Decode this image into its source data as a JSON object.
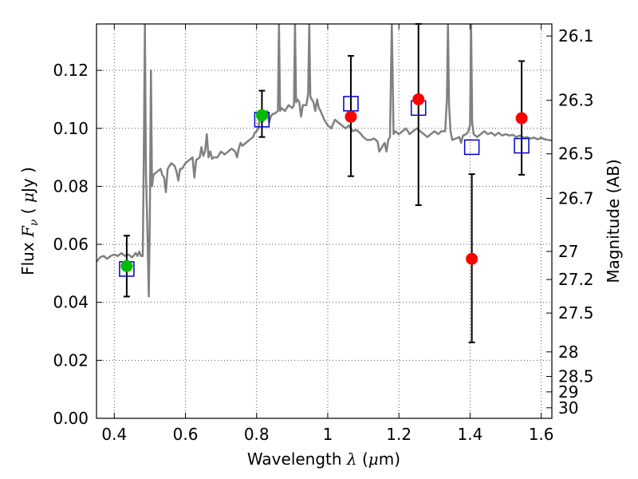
{
  "chart_data": {
    "type": "scatter",
    "xlabel": {
      "prefix": "Wavelength ",
      "symbol": "λ",
      "unit_open": " (",
      "unit_mu": "μ",
      "unit_rest": "m)"
    },
    "ylabel": {
      "prefix": "Flux ",
      "symbol": "F",
      "subscript": "ν",
      "unit_open": " ( ",
      "unit_mu": "μ",
      "unit_rest": "Jy )"
    },
    "y2label": "Magnitude (AB)",
    "xlim": [
      0.35,
      1.63
    ],
    "ylim": [
      0.0,
      0.136
    ],
    "grid": true,
    "x_ticks": [
      {
        "v": 0.4,
        "label": "0.4"
      },
      {
        "v": 0.6,
        "label": "0.6"
      },
      {
        "v": 0.8,
        "label": "0.8"
      },
      {
        "v": 1.0,
        "label": "1"
      },
      {
        "v": 1.2,
        "label": "1.2"
      },
      {
        "v": 1.4,
        "label": "1.4"
      },
      {
        "v": 1.6,
        "label": "1.6"
      }
    ],
    "y_ticks": [
      {
        "v": 0.0,
        "label": "0.00"
      },
      {
        "v": 0.02,
        "label": "0.02"
      },
      {
        "v": 0.04,
        "label": "0.04"
      },
      {
        "v": 0.06,
        "label": "0.06"
      },
      {
        "v": 0.08,
        "label": "0.08"
      },
      {
        "v": 0.1,
        "label": "0.10"
      },
      {
        "v": 0.12,
        "label": "0.12"
      }
    ],
    "y2_ticks": [
      {
        "mag": 26.1,
        "label": "26.1"
      },
      {
        "mag": 26.3,
        "label": "26.3"
      },
      {
        "mag": 26.5,
        "label": "26.5"
      },
      {
        "mag": 26.7,
        "label": "26.7"
      },
      {
        "mag": 27.0,
        "label": "27"
      },
      {
        "mag": 27.2,
        "label": "27.2"
      },
      {
        "mag": 27.5,
        "label": "27.5"
      },
      {
        "mag": 28.0,
        "label": "28"
      },
      {
        "mag": 28.5,
        "label": "28.5"
      },
      {
        "mag": 29.0,
        "label": "29"
      },
      {
        "mag": 30.0,
        "label": "30"
      }
    ],
    "colors": {
      "spectrum": "#808080",
      "green": "#00bb00",
      "red": "#ff0000",
      "blue": "#0000cc",
      "errorbar": "#000000",
      "grid": "#555555"
    },
    "series": [
      {
        "name": "model spectrum",
        "kind": "line",
        "points": [
          [
            0.35,
            0.054
          ],
          [
            0.36,
            0.0555
          ],
          [
            0.37,
            0.056
          ],
          [
            0.38,
            0.055
          ],
          [
            0.39,
            0.056
          ],
          [
            0.4,
            0.0565
          ],
          [
            0.41,
            0.056
          ],
          [
            0.42,
            0.057
          ],
          [
            0.43,
            0.056
          ],
          [
            0.44,
            0.0565
          ],
          [
            0.45,
            0.0555
          ],
          [
            0.46,
            0.057
          ],
          [
            0.465,
            0.056
          ],
          [
            0.47,
            0.0575
          ],
          [
            0.475,
            0.056
          ],
          [
            0.48,
            0.056
          ],
          [
            0.483,
            0.09
          ],
          [
            0.486,
            0.136
          ],
          [
            0.489,
            0.085
          ],
          [
            0.493,
            0.065
          ],
          [
            0.497,
            0.042
          ],
          [
            0.5,
            0.07
          ],
          [
            0.503,
            0.12
          ],
          [
            0.506,
            0.08
          ],
          [
            0.51,
            0.084
          ],
          [
            0.52,
            0.085
          ],
          [
            0.53,
            0.086
          ],
          [
            0.535,
            0.084
          ],
          [
            0.54,
            0.083
          ],
          [
            0.545,
            0.078
          ],
          [
            0.55,
            0.086
          ],
          [
            0.56,
            0.088
          ],
          [
            0.57,
            0.087
          ],
          [
            0.575,
            0.085
          ],
          [
            0.58,
            0.082
          ],
          [
            0.585,
            0.086
          ],
          [
            0.59,
            0.086
          ],
          [
            0.6,
            0.088
          ],
          [
            0.61,
            0.089
          ],
          [
            0.62,
            0.09
          ],
          [
            0.625,
            0.083
          ],
          [
            0.63,
            0.089
          ],
          [
            0.64,
            0.09
          ],
          [
            0.645,
            0.0935
          ],
          [
            0.65,
            0.0905
          ],
          [
            0.655,
            0.092
          ],
          [
            0.66,
            0.098
          ],
          [
            0.665,
            0.09
          ],
          [
            0.67,
            0.092
          ],
          [
            0.675,
            0.0895
          ],
          [
            0.68,
            0.09
          ],
          [
            0.69,
            0.09
          ],
          [
            0.7,
            0.092
          ],
          [
            0.71,
            0.091
          ],
          [
            0.72,
            0.092
          ],
          [
            0.73,
            0.093
          ],
          [
            0.74,
            0.092
          ],
          [
            0.745,
            0.09
          ],
          [
            0.75,
            0.093
          ],
          [
            0.755,
            0.095
          ],
          [
            0.76,
            0.094
          ],
          [
            0.77,
            0.095
          ],
          [
            0.78,
            0.096
          ],
          [
            0.79,
            0.097
          ],
          [
            0.795,
            0.0985
          ],
          [
            0.8,
            0.099
          ],
          [
            0.805,
            0.1
          ],
          [
            0.81,
            0.105
          ],
          [
            0.815,
            0.102
          ],
          [
            0.82,
            0.103
          ],
          [
            0.825,
            0.104
          ],
          [
            0.83,
            0.106
          ],
          [
            0.835,
            0.102
          ],
          [
            0.84,
            0.104
          ],
          [
            0.845,
            0.105
          ],
          [
            0.85,
            0.105
          ],
          [
            0.86,
            0.106
          ],
          [
            0.863,
            0.136
          ],
          [
            0.866,
            0.106
          ],
          [
            0.87,
            0.107
          ],
          [
            0.88,
            0.106
          ],
          [
            0.89,
            0.108
          ],
          [
            0.9,
            0.107
          ],
          [
            0.905,
            0.108
          ],
          [
            0.908,
            0.136
          ],
          [
            0.911,
            0.109
          ],
          [
            0.915,
            0.11
          ],
          [
            0.92,
            0.109
          ],
          [
            0.925,
            0.104
          ],
          [
            0.93,
            0.108
          ],
          [
            0.94,
            0.108
          ],
          [
            0.945,
            0.112
          ],
          [
            0.948,
            0.136
          ],
          [
            0.951,
            0.111
          ],
          [
            0.955,
            0.11
          ],
          [
            0.96,
            0.109
          ],
          [
            0.965,
            0.106
          ],
          [
            0.97,
            0.11
          ],
          [
            0.975,
            0.107
          ],
          [
            0.98,
            0.106
          ],
          [
            0.99,
            0.103
          ],
          [
            1.0,
            0.101
          ],
          [
            1.01,
            0.1
          ],
          [
            1.02,
            0.103
          ],
          [
            1.03,
            0.102
          ],
          [
            1.04,
            0.101
          ],
          [
            1.05,
            0.1
          ],
          [
            1.06,
            0.101
          ],
          [
            1.07,
            0.099
          ],
          [
            1.08,
            0.0995
          ],
          [
            1.09,
            0.0985
          ],
          [
            1.1,
            0.097
          ],
          [
            1.11,
            0.096
          ],
          [
            1.12,
            0.096
          ],
          [
            1.13,
            0.0965
          ],
          [
            1.14,
            0.0955
          ],
          [
            1.145,
            0.092
          ],
          [
            1.15,
            0.093
          ],
          [
            1.16,
            0.095
          ],
          [
            1.165,
            0.092
          ],
          [
            1.17,
            0.096
          ],
          [
            1.175,
            0.097
          ],
          [
            1.18,
            0.136
          ],
          [
            1.185,
            0.098
          ],
          [
            1.19,
            0.099
          ],
          [
            1.2,
            0.098
          ],
          [
            1.21,
            0.099
          ],
          [
            1.22,
            0.1
          ],
          [
            1.23,
            0.098
          ],
          [
            1.24,
            0.099
          ],
          [
            1.25,
            0.1
          ],
          [
            1.26,
            0.099
          ],
          [
            1.27,
            0.098
          ],
          [
            1.28,
            0.097
          ],
          [
            1.29,
            0.098
          ],
          [
            1.3,
            0.099
          ],
          [
            1.31,
            0.098
          ],
          [
            1.32,
            0.099
          ],
          [
            1.33,
            0.099
          ],
          [
            1.335,
            0.11
          ],
          [
            1.338,
            0.136
          ],
          [
            1.341,
            0.108
          ],
          [
            1.345,
            0.099
          ],
          [
            1.35,
            0.096
          ],
          [
            1.36,
            0.0965
          ],
          [
            1.37,
            0.097
          ],
          [
            1.375,
            0.095
          ],
          [
            1.38,
            0.0975
          ],
          [
            1.39,
            0.098
          ],
          [
            1.395,
            0.099
          ],
          [
            1.4,
            0.101
          ],
          [
            1.403,
            0.136
          ],
          [
            1.406,
            0.102
          ],
          [
            1.41,
            0.098
          ],
          [
            1.42,
            0.097
          ],
          [
            1.43,
            0.098
          ],
          [
            1.44,
            0.099
          ],
          [
            1.45,
            0.098
          ],
          [
            1.46,
            0.0985
          ],
          [
            1.47,
            0.0975
          ],
          [
            1.48,
            0.0985
          ],
          [
            1.49,
            0.0975
          ],
          [
            1.5,
            0.098
          ],
          [
            1.51,
            0.0975
          ],
          [
            1.52,
            0.0978
          ],
          [
            1.53,
            0.097
          ],
          [
            1.54,
            0.0975
          ],
          [
            1.55,
            0.0968
          ],
          [
            1.56,
            0.097
          ],
          [
            1.57,
            0.0965
          ],
          [
            1.58,
            0.0968
          ],
          [
            1.59,
            0.0962
          ],
          [
            1.6,
            0.0968
          ],
          [
            1.61,
            0.0962
          ],
          [
            1.62,
            0.096
          ],
          [
            1.63,
            0.0958
          ]
        ]
      },
      {
        "name": "green points",
        "kind": "circle",
        "points": [
          {
            "x": 0.435,
            "y": 0.0525,
            "err_lo": 0.042,
            "err_hi": 0.063
          },
          {
            "x": 0.815,
            "y": 0.1045,
            "err_lo": 0.097,
            "err_hi": 0.113
          }
        ]
      },
      {
        "name": "red points",
        "kind": "circle",
        "points": [
          {
            "x": 1.065,
            "y": 0.104,
            "err_lo": 0.0835,
            "err_hi": 0.125
          },
          {
            "x": 1.255,
            "y": 0.11,
            "err_lo": 0.0735,
            "err_hi": 0.136
          },
          {
            "x": 1.405,
            "y": 0.055,
            "err_lo": 0.0262,
            "err_hi": 0.0842
          },
          {
            "x": 1.545,
            "y": 0.1035,
            "err_lo": 0.084,
            "err_hi": 0.1232
          }
        ]
      },
      {
        "name": "blue squares",
        "kind": "square",
        "points": [
          {
            "x": 0.435,
            "y": 0.0515
          },
          {
            "x": 0.815,
            "y": 0.103
          },
          {
            "x": 1.065,
            "y": 0.1085
          },
          {
            "x": 1.255,
            "y": 0.107
          },
          {
            "x": 1.405,
            "y": 0.0935
          },
          {
            "x": 1.545,
            "y": 0.094
          }
        ]
      }
    ]
  }
}
